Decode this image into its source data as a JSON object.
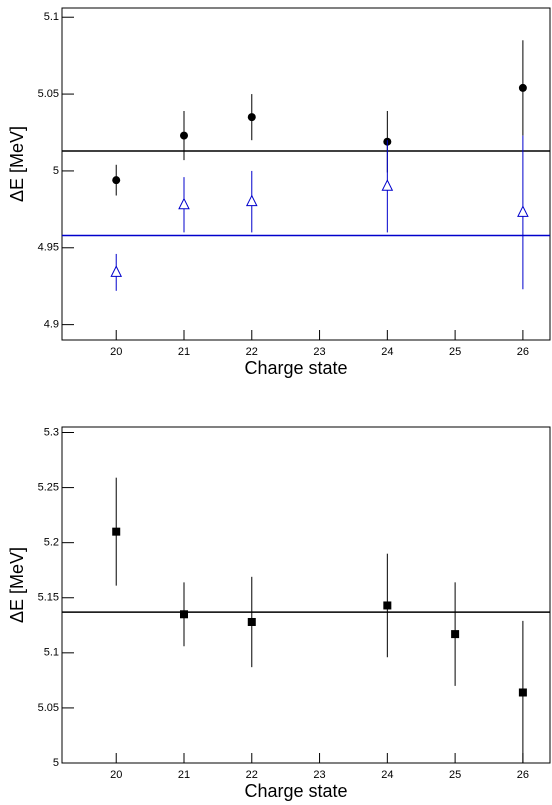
{
  "chart_data": [
    {
      "type": "scatter",
      "x_label": "Charge state",
      "y_label": "ΔE [MeV]",
      "xlim": [
        19.2,
        26.4
      ],
      "xticks": [
        20,
        21,
        22,
        23,
        24,
        25,
        26
      ],
      "ylim": [
        4.89,
        5.106
      ],
      "yticks": [
        4.9,
        4.95,
        5,
        5.05,
        5.1
      ],
      "series": [
        {
          "marker": "circle",
          "color": "#000000",
          "x": [
            20,
            21,
            22,
            24,
            26
          ],
          "values": [
            4.994,
            5.023,
            5.035,
            5.019,
            5.054
          ],
          "errors": [
            0.01,
            0.016,
            0.015,
            0.02,
            0.031
          ],
          "fit_value": 5.013
        },
        {
          "marker": "triangle",
          "color": "#0000cc",
          "x": [
            20,
            21,
            22,
            24,
            26
          ],
          "values": [
            4.934,
            4.978,
            4.98,
            4.99,
            4.973
          ],
          "errors": [
            0.012,
            0.018,
            0.02,
            0.03,
            0.05
          ],
          "fit_value": 4.958
        }
      ]
    },
    {
      "type": "scatter",
      "x_label": "Charge state",
      "y_label": "ΔE [MeV]",
      "xlim": [
        19.2,
        26.4
      ],
      "xticks": [
        20,
        21,
        22,
        23,
        24,
        25,
        26
      ],
      "ylim": [
        5.0,
        5.305
      ],
      "yticks": [
        5,
        5.05,
        5.1,
        5.15,
        5.2,
        5.25,
        5.3
      ],
      "series": [
        {
          "marker": "square",
          "color": "#000000",
          "x": [
            20,
            21,
            22,
            24,
            25,
            26
          ],
          "values": [
            5.21,
            5.135,
            5.128,
            5.143,
            5.117,
            5.064
          ],
          "errors": [
            0.049,
            0.029,
            0.041,
            0.047,
            0.047,
            0.065
          ],
          "fit_value": 5.137
        }
      ]
    }
  ]
}
